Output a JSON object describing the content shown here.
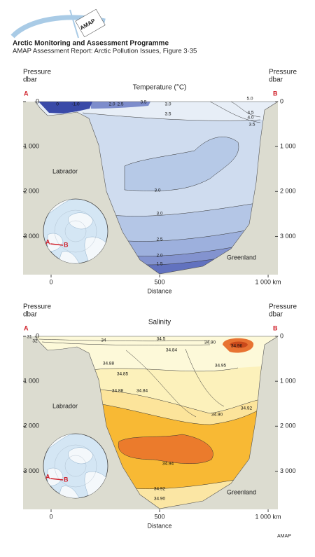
{
  "header": {
    "logo": "AMAP",
    "title": "Arctic Monitoring and Assessment Programme",
    "subtitle": "AMAP Assessment Report: Arctic Pollution Issues, Figure 3·35"
  },
  "chart_data": [
    {
      "type": "contour",
      "title": "Temperature (°C)",
      "y_label": "Pressure",
      "y_unit": "dbar",
      "x_label": "Distance",
      "end_labels": [
        "A",
        "B"
      ],
      "region_labels": [
        "Labrador",
        "Greenland"
      ],
      "xlim": [
        -129,
        1045
      ],
      "ylim": [
        0,
        3850
      ],
      "xticks": [
        0,
        500,
        {
          "value": 1000,
          "label": "1 000 km"
        }
      ],
      "yticks": [
        0,
        {
          "value": 1000,
          "label": "1 000"
        },
        {
          "value": 2000,
          "label": "2 000"
        },
        {
          "value": 3000,
          "label": "3 000"
        }
      ],
      "contour_labels": [
        "0",
        "-1.0",
        "2.0",
        "2.5",
        "3.5",
        "3.0",
        "3.5",
        "5.0",
        "4.5",
        "4.0",
        "3.5",
        "3.0",
        "3.0",
        "2.5",
        "2.0",
        "1.5"
      ]
    },
    {
      "type": "contour",
      "title": "Salinity",
      "y_label": "Pressure",
      "y_unit": "dbar",
      "x_label": "Distance",
      "end_labels": [
        "A",
        "B"
      ],
      "region_labels": [
        "Labrador",
        "Greenland"
      ],
      "xlim": [
        -129,
        1045
      ],
      "ylim": [
        0,
        3850
      ],
      "xticks": [
        0,
        500,
        {
          "value": 1000,
          "label": "1 000 km"
        }
      ],
      "yticks": [
        0,
        {
          "value": 1000,
          "label": "1 000"
        },
        {
          "value": 2000,
          "label": "2 000"
        },
        {
          "value": 3000,
          "label": "3 000"
        }
      ],
      "contour_labels": [
        "31",
        "32",
        "34",
        "34.5",
        "34.90",
        "34.96",
        "34.84",
        "34.88",
        "34.95",
        "34.85",
        "34.88",
        "34.84",
        "34.90",
        "34.92",
        "34.94",
        "34.92",
        "34.90"
      ]
    }
  ],
  "footer": "AMAP"
}
